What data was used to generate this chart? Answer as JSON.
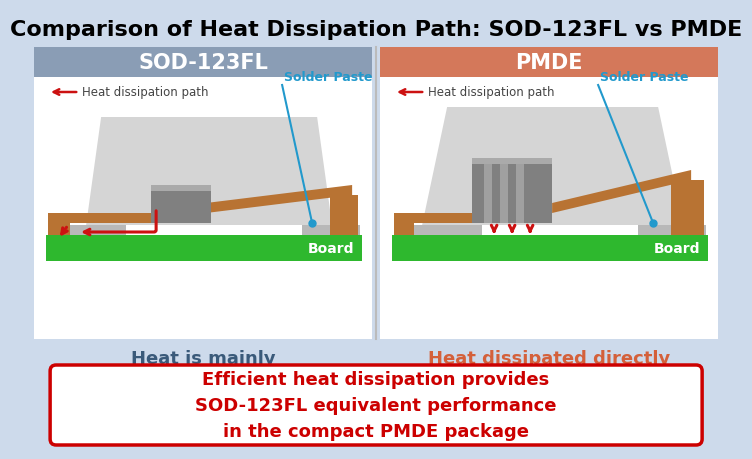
{
  "title": "Comparison of Heat Dissipation Path: SOD-123FL vs PMDE",
  "title_fontsize": 16,
  "title_color": "#000000",
  "bg_color": "#cddaeb",
  "left_header": "SOD-123FL",
  "right_header": "PMDE",
  "left_header_bg": "#8a9db5",
  "right_header_bg": "#d4785a",
  "header_text_color": "#ffffff",
  "left_desc": "Heat is mainly\ndissipated through\nthe lead frame",
  "right_desc": "Heat dissipated directly\nfrom the backside\nelectrode to the substrate",
  "left_desc_color": "#3a5a7a",
  "right_desc_color": "#d4603a",
  "bottom_text_line1": "Efficient heat dissipation provides",
  "bottom_text_line2": "SOD-123FL equivalent performance",
  "bottom_text_line3": "in the compact PMDE package",
  "bottom_text_color": "#cc0000",
  "bottom_bg": "#ffffff",
  "bottom_border": "#cc0000",
  "panel_bg": "#ffffff",
  "board_color": "#2eb82e",
  "board_text_color": "#ffffff",
  "solder_label_color": "#2299cc",
  "heat_path_label_color": "#444444",
  "arrow_color": "#cc1111",
  "copper_color": "#b87333",
  "grey_light": "#b8b8b8",
  "grey_dark": "#888888",
  "grey_body": "#e0e0e0",
  "divider_color": "#bbbbbb"
}
